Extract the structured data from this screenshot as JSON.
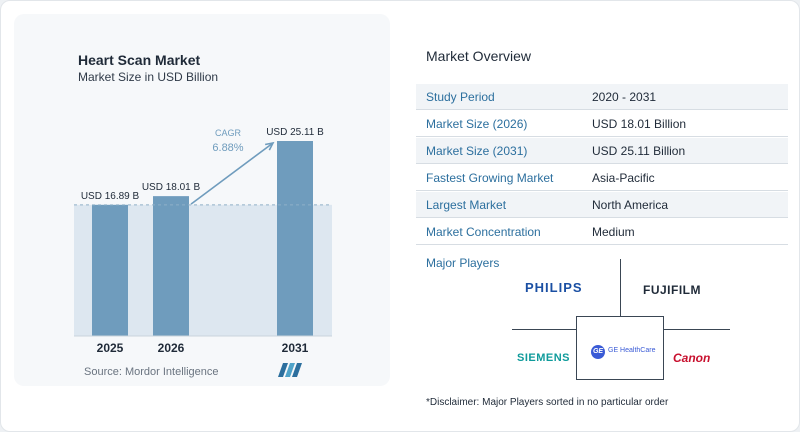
{
  "chart_data": {
    "type": "bar",
    "title": "Heart Scan Market",
    "subtitle": "Market Size in USD Billion",
    "categories": [
      "2025",
      "2026",
      "2031"
    ],
    "values": [
      16.89,
      18.01,
      25.11
    ],
    "data_labels": [
      "USD 16.89 B",
      "USD 18.01 B",
      "USD 25.11 B"
    ],
    "cagr_label": "CAGR",
    "cagr_value": "6.88%",
    "ylim": [
      0,
      25.11
    ],
    "grid": false,
    "bar_color": "#6f9cbd",
    "reference_fill": "#dde7f0"
  },
  "source": "Source:  Mordor Intelligence",
  "overview": {
    "title": "Market Overview",
    "rows": [
      {
        "label": "Study Period",
        "value": "2020 - 2031"
      },
      {
        "label": "Market Size (2026)",
        "value": "USD 18.01 Billion"
      },
      {
        "label": "Market Size (2031)",
        "value": "USD 25.11 Billion"
      },
      {
        "label": "Fastest Growing Market",
        "value": "Asia-Pacific"
      },
      {
        "label": "Largest Market",
        "value": "North America"
      },
      {
        "label": "Market Concentration",
        "value": "Medium"
      }
    ]
  },
  "players": {
    "title": "Major Players",
    "logos": {
      "philips": "PHILIPS",
      "fujifilm": "FUJIFILM",
      "siemens": "SIEMENS",
      "ge_badge": "GE",
      "ge": "GE HealthCare",
      "canon": "Canon"
    }
  },
  "disclaimer": "*Disclaimer: Major Players sorted in no particular order",
  "colors": {
    "accent_text": "#2c6f9e",
    "philips": "#1a4fa3",
    "fujifilm": "#1f2a38",
    "siemens": "#0f9b9b",
    "canon": "#c8102e"
  }
}
